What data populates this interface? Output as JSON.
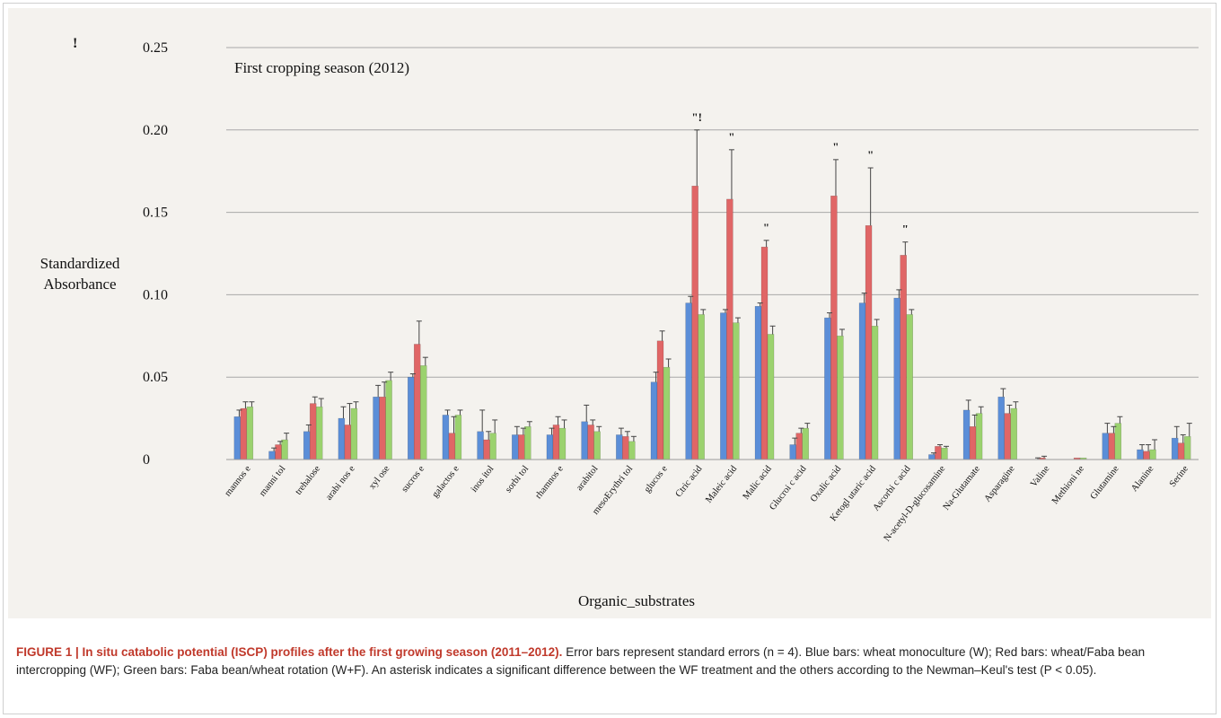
{
  "chart_data": {
    "type": "bar",
    "title": "First cropping season (2012)",
    "xlabel": "Organic_substrates",
    "ylabel": [
      "Standardized",
      "Absorbance"
    ],
    "ylim": [
      0,
      0.25
    ],
    "yticks": [
      0,
      0.05,
      0.1,
      0.15,
      0.2,
      0.25
    ],
    "ytick_labels": [
      "0",
      "0.05",
      "0.10",
      "0.15",
      "0.20",
      "0.25"
    ],
    "grid": true,
    "stray_marks": [
      "!"
    ],
    "categories": [
      "mannos e",
      "manni tol",
      "trehalose",
      "arabi nos e",
      "xyl ose",
      "sucros e",
      "galactos e",
      "inos itol",
      "sorbi tol",
      "rhamnos e",
      "arabitol",
      "mesoErythri tol",
      "glucos e",
      "Ctric acid",
      "Maleic acid",
      "Malic acid",
      "Glucroi c acid",
      "Oxalic acid",
      "Ketogl utaric acid",
      "Ascorbi c acid",
      "N-acetyl-D-glucosamine",
      "Na-Glutamate",
      "Asparagine",
      "Valine",
      "Methioni ne",
      "Glutamine",
      "Alanine",
      "Serine"
    ],
    "series": [
      {
        "color": "#5b8ed8",
        "values": [
          0.026,
          0.005,
          0.017,
          0.025,
          0.038,
          0.05,
          0.027,
          0.017,
          0.015,
          0.015,
          0.023,
          0.015,
          0.047,
          0.095,
          0.089,
          0.093,
          0.009,
          0.086,
          0.095,
          0.098,
          0.003,
          0.03,
          0.038,
          0.0,
          0.0,
          0.016,
          0.006,
          0.013
        ],
        "errors": [
          0.004,
          0.002,
          0.004,
          0.007,
          0.007,
          0.002,
          0.003,
          0.013,
          0.005,
          0.004,
          0.01,
          0.004,
          0.006,
          0.004,
          0.002,
          0.002,
          0.004,
          0.003,
          0.006,
          0.005,
          0.001,
          0.006,
          0.005,
          0.001,
          0.0,
          0.006,
          0.003,
          0.007
        ]
      },
      {
        "color": "#e06666",
        "values": [
          0.031,
          0.009,
          0.034,
          0.021,
          0.038,
          0.07,
          0.016,
          0.012,
          0.015,
          0.021,
          0.021,
          0.014,
          0.072,
          0.166,
          0.158,
          0.129,
          0.016,
          0.16,
          0.142,
          0.124,
          0.008,
          0.02,
          0.028,
          0.001,
          0.001,
          0.016,
          0.005,
          0.01
        ],
        "errors": [
          0.004,
          0.002,
          0.004,
          0.013,
          0.009,
          0.014,
          0.01,
          0.005,
          0.004,
          0.005,
          0.003,
          0.003,
          0.006,
          0.034,
          0.03,
          0.004,
          0.003,
          0.022,
          0.035,
          0.008,
          0.001,
          0.007,
          0.005,
          0.001,
          0.0,
          0.004,
          0.004,
          0.005
        ]
      },
      {
        "color": "#9bd26e",
        "values": [
          0.032,
          0.012,
          0.032,
          0.031,
          0.048,
          0.057,
          0.027,
          0.016,
          0.02,
          0.019,
          0.017,
          0.011,
          0.056,
          0.088,
          0.083,
          0.076,
          0.019,
          0.075,
          0.081,
          0.088,
          0.007,
          0.028,
          0.031,
          0.0,
          0.001,
          0.022,
          0.006,
          0.014
        ],
        "errors": [
          0.003,
          0.004,
          0.005,
          0.004,
          0.005,
          0.005,
          0.003,
          0.008,
          0.003,
          0.005,
          0.003,
          0.003,
          0.005,
          0.003,
          0.003,
          0.005,
          0.003,
          0.004,
          0.004,
          0.003,
          0.001,
          0.004,
          0.004,
          0.0,
          0.0,
          0.004,
          0.006,
          0.008
        ]
      }
    ],
    "annotations": [
      {
        "category_index": 13,
        "text": "\"!"
      },
      {
        "category_index": 14,
        "text": "\""
      },
      {
        "category_index": 15,
        "text": "\""
      },
      {
        "category_index": 17,
        "text": "\""
      },
      {
        "category_index": 18,
        "text": "\""
      },
      {
        "category_index": 19,
        "text": "\""
      }
    ]
  },
  "caption": {
    "lead": "FIGURE 1 | In situ catabolic potential (ISCP) profiles after the first growing season (2011–2012).",
    "body": " Error bars represent standard errors (n = 4). Blue bars: wheat monoculture (W); Red bars: wheat/Faba bean intercropping (WF); Green bars: Faba bean/wheat rotation (W+F). An asterisk indicates a significant difference between the WF treatment and the others according to the Newman–Keul's test (P < 0.05)."
  }
}
